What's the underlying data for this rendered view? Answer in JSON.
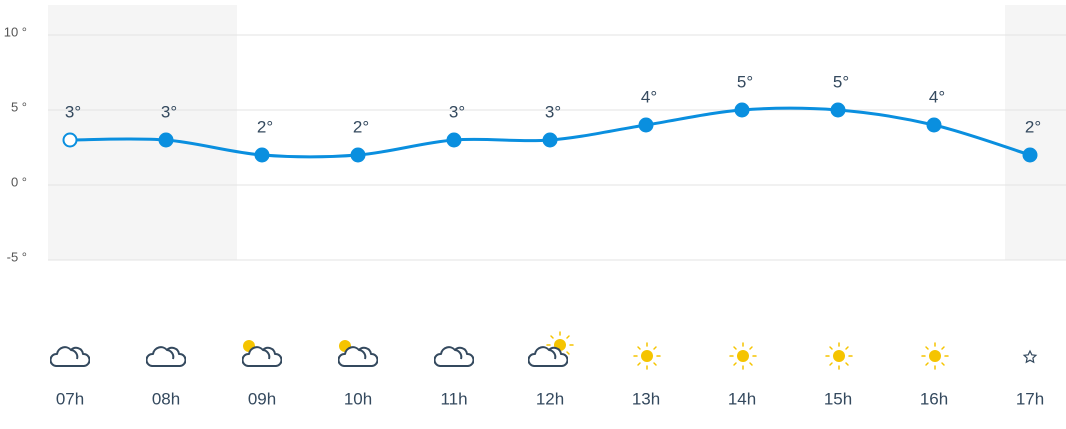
{
  "chart_data": {
    "type": "line",
    "categories": [
      "07h",
      "08h",
      "09h",
      "10h",
      "11h",
      "12h",
      "13h",
      "14h",
      "15h",
      "16h",
      "17h"
    ],
    "values": [
      3,
      3,
      2,
      2,
      3,
      3,
      4,
      5,
      5,
      4,
      2
    ],
    "value_labels": [
      "3°",
      "3°",
      "2°",
      "2°",
      "3°",
      "3°",
      "4°",
      "5°",
      "5°",
      "4°",
      "2°"
    ],
    "color": "#0a8fdf",
    "ylim": [
      -5,
      12
    ],
    "yticks": [
      {
        "value": -5,
        "label": "-5 °"
      },
      {
        "value": 0,
        "label": "0 °"
      },
      {
        "value": 5,
        "label": "5 °"
      },
      {
        "value": 10,
        "label": "10 °"
      }
    ],
    "grid": true
  }
}
